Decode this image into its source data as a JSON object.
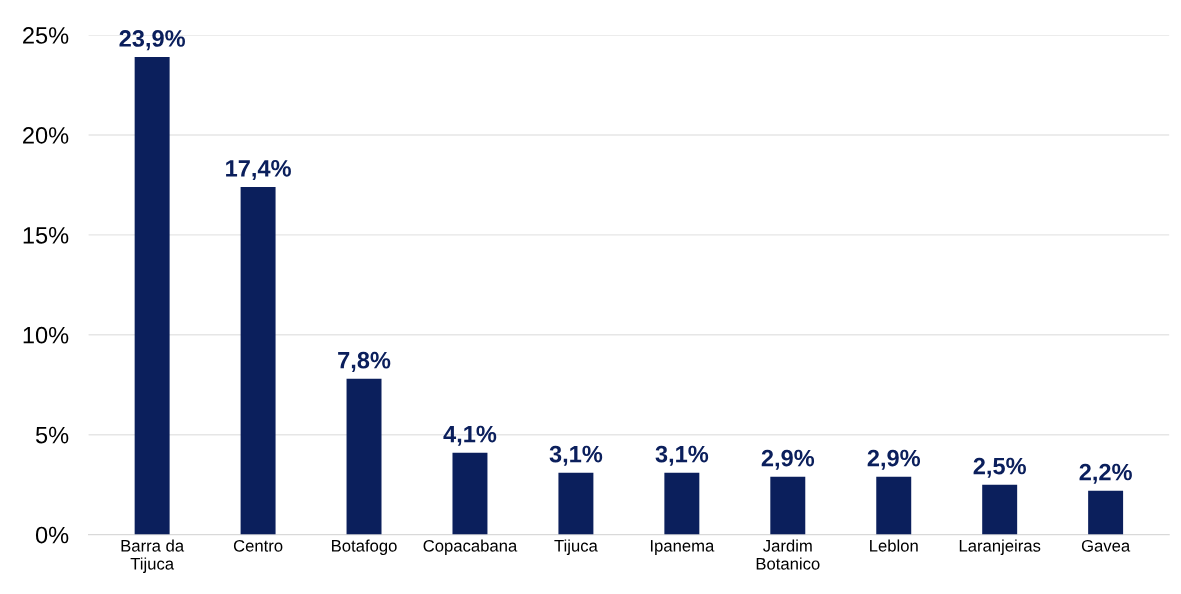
{
  "chart_data": {
    "type": "bar",
    "categories": [
      "Barra da\nTijuca",
      "Centro",
      "Botafogo",
      "Copacabana",
      "Tijuca",
      "Ipanema",
      "Jardim\nBotanico",
      "Leblon",
      "Laranjeiras",
      "Gavea"
    ],
    "values": [
      23.9,
      17.4,
      7.8,
      4.1,
      3.1,
      3.1,
      2.9,
      2.9,
      2.5,
      2.2
    ],
    "value_labels": [
      "23,9%",
      "17,4%",
      "7,8%",
      "4,1%",
      "3,1%",
      "3,1%",
      "2,9%",
      "2,9%",
      "2,5%",
      "2,2%"
    ],
    "color": "#0b1f5c",
    "ylim": [
      0,
      25
    ],
    "yticks": [
      {
        "value": 0,
        "label": "0%"
      },
      {
        "value": 5,
        "label": "5%"
      },
      {
        "value": 10,
        "label": "10%"
      },
      {
        "value": 15,
        "label": "15%"
      },
      {
        "value": 20,
        "label": "20%"
      },
      {
        "value": 25,
        "label": "25%"
      }
    ],
    "grid": "y"
  }
}
